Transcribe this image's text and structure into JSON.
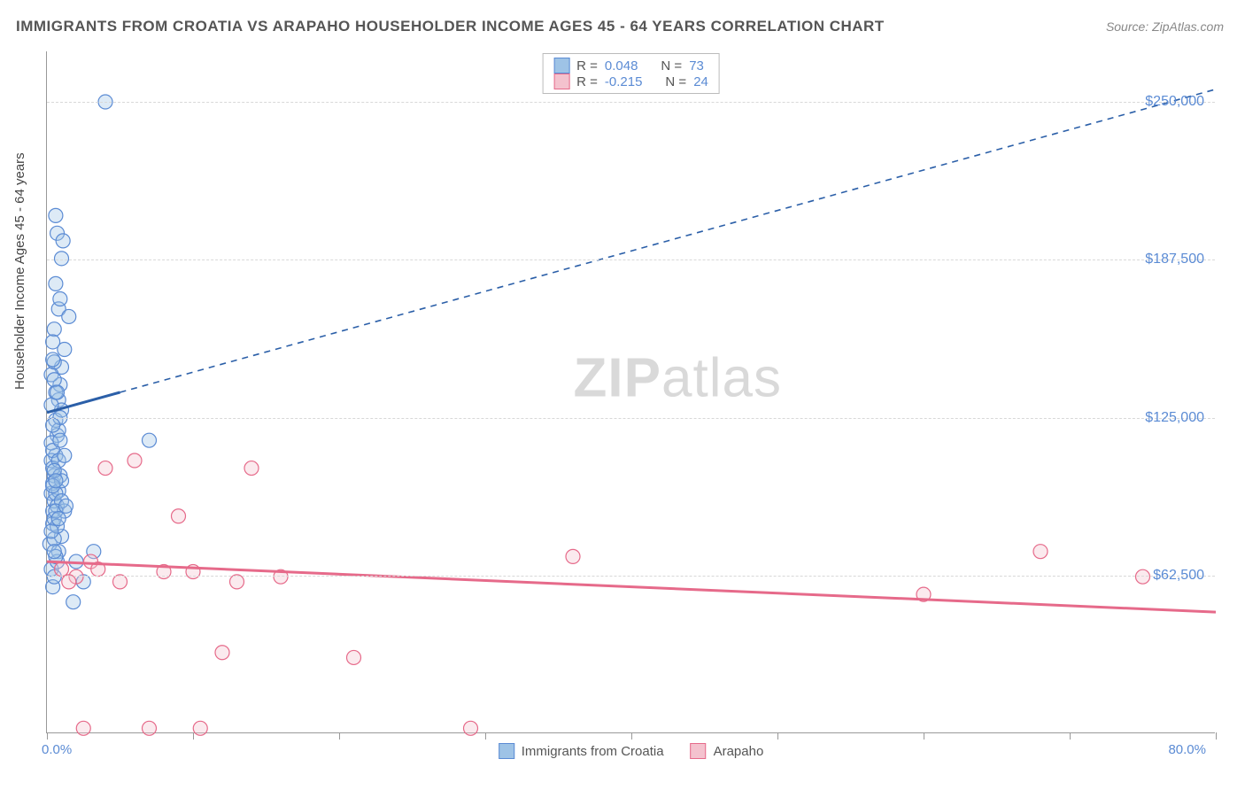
{
  "title": "IMMIGRANTS FROM CROATIA VS ARAPAHO HOUSEHOLDER INCOME AGES 45 - 64 YEARS CORRELATION CHART",
  "source": "Source: ZipAtlas.com",
  "ylabel": "Householder Income Ages 45 - 64 years",
  "watermark_bold": "ZIP",
  "watermark_thin": "atlas",
  "chart": {
    "type": "scatter",
    "xlim": [
      0,
      80
    ],
    "ylim": [
      0,
      270000
    ],
    "x_axis_label_left": "0.0%",
    "x_axis_label_right": "80.0%",
    "y_ticks": [
      62500,
      125000,
      187500,
      250000
    ],
    "y_tick_labels": [
      "$62,500",
      "$125,000",
      "$187,500",
      "$250,000"
    ],
    "x_ticks": [
      0,
      10,
      20,
      30,
      40,
      50,
      60,
      70,
      80
    ],
    "background_color": "#ffffff",
    "grid_color": "#d8d8d8",
    "marker_radius": 8,
    "series": [
      {
        "name": "Immigrants from Croatia",
        "fill": "#9ec3e6",
        "stroke": "#5b8bd4",
        "R": "0.048",
        "N": "73",
        "trend": {
          "x1": 0,
          "y1": 127000,
          "x2": 80,
          "y2": 255000,
          "solid_until_x": 5
        },
        "points": [
          [
            0.3,
            95000
          ],
          [
            0.5,
            102000
          ],
          [
            0.4,
            88000
          ],
          [
            0.6,
            110000
          ],
          [
            0.2,
            75000
          ],
          [
            0.8,
            132000
          ],
          [
            0.4,
            99000
          ],
          [
            1.0,
            145000
          ],
          [
            0.7,
            118000
          ],
          [
            0.5,
            92000
          ],
          [
            0.3,
            108000
          ],
          [
            0.6,
            124000
          ],
          [
            0.9,
            138000
          ],
          [
            0.4,
            83000
          ],
          [
            1.2,
            152000
          ],
          [
            0.5,
            160000
          ],
          [
            0.8,
            168000
          ],
          [
            0.6,
            178000
          ],
          [
            0.3,
            142000
          ],
          [
            1.0,
            188000
          ],
          [
            0.7,
            198000
          ],
          [
            0.4,
            155000
          ],
          [
            0.9,
            172000
          ],
          [
            0.5,
            147000
          ],
          [
            1.1,
            195000
          ],
          [
            0.6,
            205000
          ],
          [
            0.3,
            65000
          ],
          [
            0.8,
            72000
          ],
          [
            0.4,
            58000
          ],
          [
            1.0,
            78000
          ],
          [
            0.7,
            68000
          ],
          [
            0.5,
            85000
          ],
          [
            0.3,
            115000
          ],
          [
            0.8,
            96000
          ],
          [
            0.4,
            105000
          ],
          [
            1.0,
            128000
          ],
          [
            0.7,
            90000
          ],
          [
            0.5,
            77000
          ],
          [
            0.6,
            135000
          ],
          [
            0.9,
            102000
          ],
          [
            0.4,
            148000
          ],
          [
            1.2,
            88000
          ],
          [
            0.5,
            62000
          ],
          [
            0.8,
            120000
          ],
          [
            0.6,
            70000
          ],
          [
            0.3,
            130000
          ],
          [
            1.0,
            100000
          ],
          [
            0.7,
            82000
          ],
          [
            0.4,
            112000
          ],
          [
            0.9,
            125000
          ],
          [
            0.5,
            140000
          ],
          [
            0.6,
            95000
          ],
          [
            0.3,
            80000
          ],
          [
            0.8,
            108000
          ],
          [
            0.4,
            122000
          ],
          [
            1.0,
            92000
          ],
          [
            0.7,
            135000
          ],
          [
            0.5,
            104000
          ],
          [
            0.6,
            88000
          ],
          [
            0.9,
            116000
          ],
          [
            0.4,
            98000
          ],
          [
            1.2,
            110000
          ],
          [
            0.5,
            72000
          ],
          [
            0.8,
            85000
          ],
          [
            0.6,
            100000
          ],
          [
            4.0,
            250000
          ],
          [
            2.0,
            68000
          ],
          [
            2.5,
            60000
          ],
          [
            1.8,
            52000
          ],
          [
            3.2,
            72000
          ],
          [
            7.0,
            116000
          ],
          [
            1.5,
            165000
          ],
          [
            1.3,
            90000
          ]
        ]
      },
      {
        "name": "Arapaho",
        "fill": "#f4c2ce",
        "stroke": "#e66a8a",
        "R": "-0.215",
        "N": "24",
        "trend": {
          "x1": 0,
          "y1": 68000,
          "x2": 80,
          "y2": 48000,
          "solid_until_x": 80
        },
        "points": [
          [
            1.0,
            65000
          ],
          [
            2.0,
            62000
          ],
          [
            2.5,
            2000
          ],
          [
            3.0,
            68000
          ],
          [
            4.0,
            105000
          ],
          [
            5.0,
            60000
          ],
          [
            6.0,
            108000
          ],
          [
            7.0,
            2000
          ],
          [
            8.0,
            64000
          ],
          [
            9.0,
            86000
          ],
          [
            10.0,
            64000
          ],
          [
            10.5,
            2000
          ],
          [
            12.0,
            32000
          ],
          [
            13.0,
            60000
          ],
          [
            14.0,
            105000
          ],
          [
            16.0,
            62000
          ],
          [
            21.0,
            30000
          ],
          [
            29.0,
            2000
          ],
          [
            36.0,
            70000
          ],
          [
            60.0,
            55000
          ],
          [
            68.0,
            72000
          ],
          [
            75.0,
            62000
          ],
          [
            3.5,
            65000
          ],
          [
            1.5,
            60000
          ]
        ]
      }
    ]
  },
  "legend_top": {
    "r_label": "R  =",
    "n_label": "N  ="
  },
  "colors": {
    "axis_text": "#5b8bd4",
    "title_text": "#555555",
    "blue_trend": "#2b5fa8",
    "pink_trend": "#e66a8a"
  }
}
